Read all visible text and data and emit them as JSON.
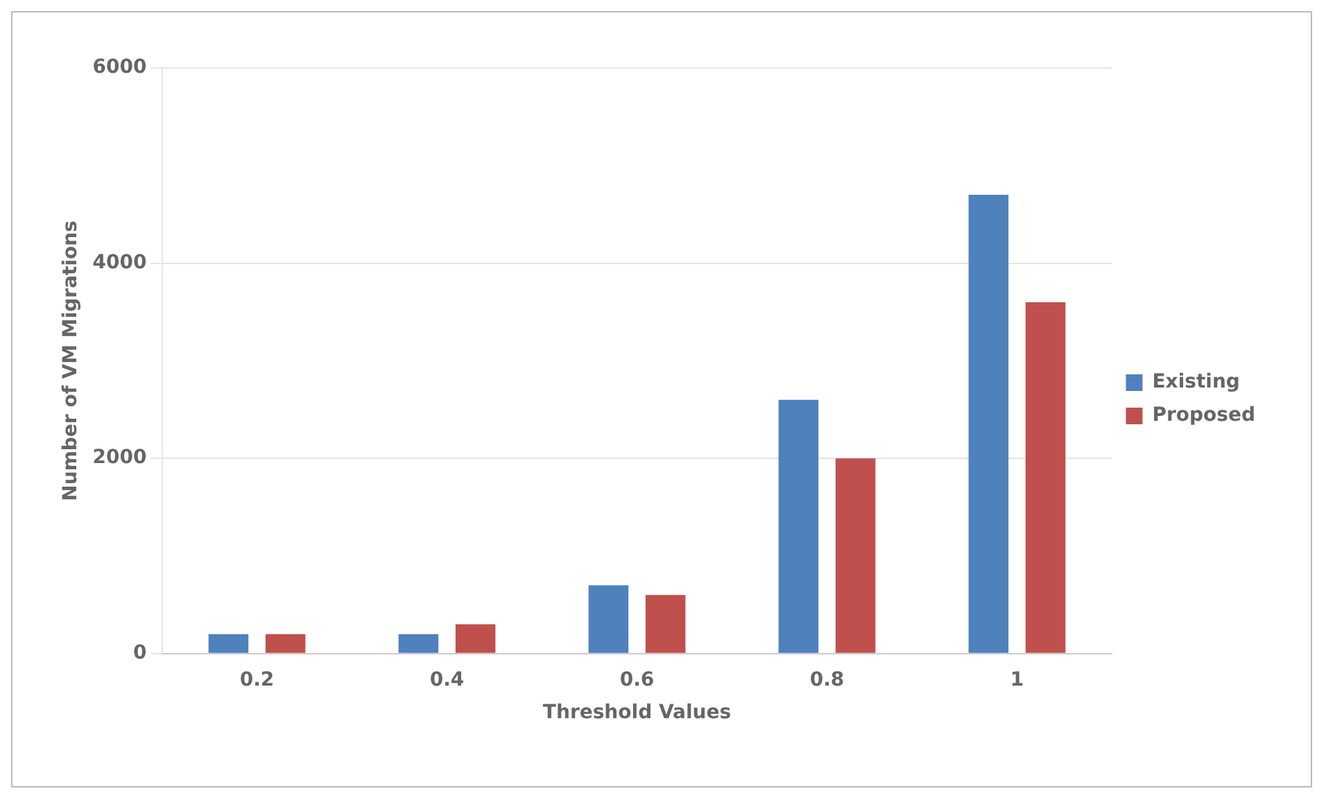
{
  "chart_data": {
    "type": "bar",
    "xlabel": "Threshold Values",
    "ylabel": "Number of VM Migrations",
    "categories": [
      "0.2",
      "0.4",
      "0.6",
      "0.8",
      "1"
    ],
    "series": [
      {
        "name": "Existing",
        "color": "#4f81bd",
        "values": [
          200,
          200,
          700,
          2600,
          4700
        ]
      },
      {
        "name": "Proposed",
        "color": "#c0504d",
        "values": [
          200,
          300,
          600,
          2000,
          3600
        ]
      }
    ],
    "ylim": [
      0,
      6000
    ],
    "yticks": [
      0,
      2000,
      4000,
      6000
    ],
    "grid": "y",
    "legend": "right"
  }
}
